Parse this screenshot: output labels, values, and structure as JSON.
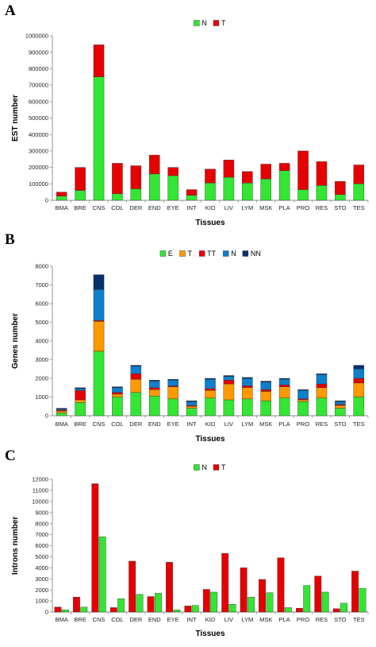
{
  "chart_data": [
    {
      "panel": "A",
      "type": "bar",
      "stacked": true,
      "categories": [
        "BMA",
        "BRE",
        "CNS",
        "COL",
        "DER",
        "END",
        "EYE",
        "INT",
        "KID",
        "LIV",
        "LYM",
        "MSK",
        "PLA",
        "PRO",
        "RES",
        "STO",
        "TES"
      ],
      "series": [
        {
          "name": "N",
          "color": "#33e633",
          "values": [
            25000,
            60000,
            750000,
            40000,
            70000,
            160000,
            150000,
            30000,
            105000,
            140000,
            105000,
            130000,
            180000,
            65000,
            90000,
            35000,
            100000
          ]
        },
        {
          "name": "T",
          "color": "#e60000",
          "values": [
            25000,
            140000,
            195000,
            185000,
            140000,
            115000,
            50000,
            35000,
            85000,
            105000,
            70000,
            90000,
            45000,
            235000,
            145000,
            80000,
            115000
          ]
        }
      ],
      "xlabel": "Tissues",
      "ylabel": "EST number",
      "ylim": [
        0,
        1000000
      ],
      "yticks": [
        0,
        100000,
        200000,
        300000,
        400000,
        500000,
        600000,
        700000,
        800000,
        900000,
        1000000
      ],
      "legend_position": "top"
    },
    {
      "panel": "B",
      "type": "bar",
      "stacked": true,
      "categories": [
        "BMA",
        "BRE",
        "CNS",
        "COL",
        "DER",
        "END",
        "EYE",
        "INT",
        "KID",
        "LIV",
        "LYM",
        "MSK",
        "PLA",
        "PRO",
        "RES",
        "STO",
        "TES"
      ],
      "series": [
        {
          "name": "E",
          "color": "#33e633",
          "values": [
            150,
            700,
            3450,
            1000,
            1250,
            1050,
            900,
            400,
            950,
            850,
            900,
            800,
            950,
            750,
            950,
            400,
            1000
          ]
        },
        {
          "name": "T",
          "color": "#ff9900",
          "values": [
            100,
            150,
            1600,
            150,
            700,
            350,
            650,
            100,
            400,
            850,
            600,
            500,
            600,
            100,
            550,
            150,
            750
          ]
        },
        {
          "name": "TT",
          "color": "#e60000",
          "values": [
            50,
            500,
            50,
            100,
            300,
            100,
            50,
            50,
            100,
            200,
            100,
            100,
            100,
            50,
            200,
            50,
            250
          ]
        },
        {
          "name": "N",
          "color": "#0d7fcc",
          "values": [
            50,
            100,
            1650,
            250,
            400,
            350,
            300,
            200,
            500,
            200,
            400,
            400,
            300,
            450,
            500,
            150,
            500
          ]
        },
        {
          "name": "NN",
          "color": "#08306b",
          "values": [
            50,
            50,
            800,
            50,
            50,
            50,
            50,
            50,
            50,
            50,
            50,
            50,
            50,
            50,
            50,
            50,
            200
          ]
        }
      ],
      "xlabel": "Tissues",
      "ylabel": "Genes number",
      "ylim": [
        0,
        8000
      ],
      "yticks": [
        0,
        1000,
        2000,
        3000,
        4000,
        5000,
        6000,
        7000,
        8000
      ],
      "legend_position": "top"
    },
    {
      "panel": "C",
      "type": "bar",
      "stacked": false,
      "categories": [
        "BMA",
        "BRE",
        "CNS",
        "COL",
        "DER",
        "END",
        "EYE",
        "INT",
        "KID",
        "LIV",
        "LYM",
        "MSK",
        "PLA",
        "PRO",
        "RES",
        "STO",
        "TES"
      ],
      "series": [
        {
          "name": "N",
          "color": "#33e633",
          "values": [
            200,
            450,
            6800,
            1200,
            1600,
            1700,
            200,
            600,
            1800,
            700,
            1350,
            1750,
            400,
            2400,
            1800,
            800,
            2150
          ]
        },
        {
          "name": "T",
          "color": "#e60000",
          "values": [
            450,
            1350,
            11600,
            400,
            4600,
            1400,
            4500,
            550,
            2050,
            5300,
            4000,
            2950,
            4900,
            350,
            3250,
            300,
            3700
          ]
        }
      ],
      "series_order_in_group": [
        "T",
        "N"
      ],
      "xlabel": "Tissues",
      "ylabel": "Introns number",
      "ylim": [
        0,
        12000
      ],
      "yticks": [
        0,
        1000,
        2000,
        3000,
        4000,
        5000,
        6000,
        7000,
        8000,
        9000,
        10000,
        11000,
        12000
      ],
      "legend_position": "top"
    }
  ]
}
